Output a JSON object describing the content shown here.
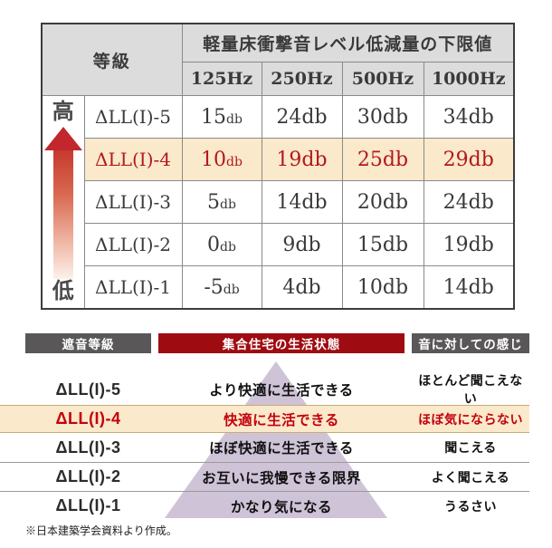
{
  "colors": {
    "header_bg": "#dcdcdc",
    "outer_border": "#3c3c3c",
    "inner_border": "#8a8a8a",
    "highlight_bg": "#fae9cb",
    "highlight_border": "#c9ab77",
    "accent_red": "#b2191d",
    "arrow_red": "#c1272d",
    "bar_gray": "#595757",
    "bar_red": "#9e0b10",
    "bottom_red": "#c3000e",
    "pyramid": "#cfc3d7",
    "row_line": "#9a9a9a"
  },
  "top_table": {
    "grade_header": "等級",
    "main_header": "軽量床衝撃音レベル低減量の下限値",
    "freq_headers": [
      "125Hz",
      "250Hz",
      "500Hz",
      "1000Hz"
    ],
    "unit": "db",
    "axis": {
      "high": "高",
      "low": "低"
    },
    "rows": [
      {
        "grade": "ΔLL(I)-5",
        "values": [
          "15",
          "24",
          "30",
          "34"
        ],
        "highlight": false
      },
      {
        "grade": "ΔLL(I)-4",
        "values": [
          "10",
          "19",
          "25",
          "29"
        ],
        "highlight": true
      },
      {
        "grade": "ΔLL(I)-3",
        "values": [
          "5",
          "14",
          "20",
          "24"
        ],
        "highlight": false
      },
      {
        "grade": "ΔLL(I)-2",
        "values": [
          "0",
          "9",
          "15",
          "19"
        ],
        "highlight": false
      },
      {
        "grade": "ΔLL(I)-1",
        "values": [
          "-5",
          "4",
          "10",
          "14"
        ],
        "highlight": false
      }
    ]
  },
  "bottom_table": {
    "headers": [
      {
        "label": "遮音等級"
      },
      {
        "label": "集合住宅の生活状態"
      },
      {
        "label": "音に対しての感じ"
      }
    ],
    "rows": [
      {
        "grade": "ΔLL(I)-5",
        "living": "より快適に生活できる",
        "feeling": "ほとんど聞こえない",
        "highlight": false
      },
      {
        "grade": "ΔLL(I)-4",
        "living": "快適に生活できる",
        "feeling": "ほぼ気にならない",
        "highlight": true
      },
      {
        "grade": "ΔLL(I)-3",
        "living": "ほぼ快適に生活できる",
        "feeling": "聞こえる",
        "highlight": false
      },
      {
        "grade": "ΔLL(I)-2",
        "living": "お互いに我慢できる限界",
        "feeling": "よく聞こえる",
        "highlight": false
      },
      {
        "grade": "ΔLL(I)-1",
        "living": "かなり気になる",
        "feeling": "うるさい",
        "highlight": false
      }
    ],
    "footnote": "※日本建築学会資料より作成。"
  }
}
